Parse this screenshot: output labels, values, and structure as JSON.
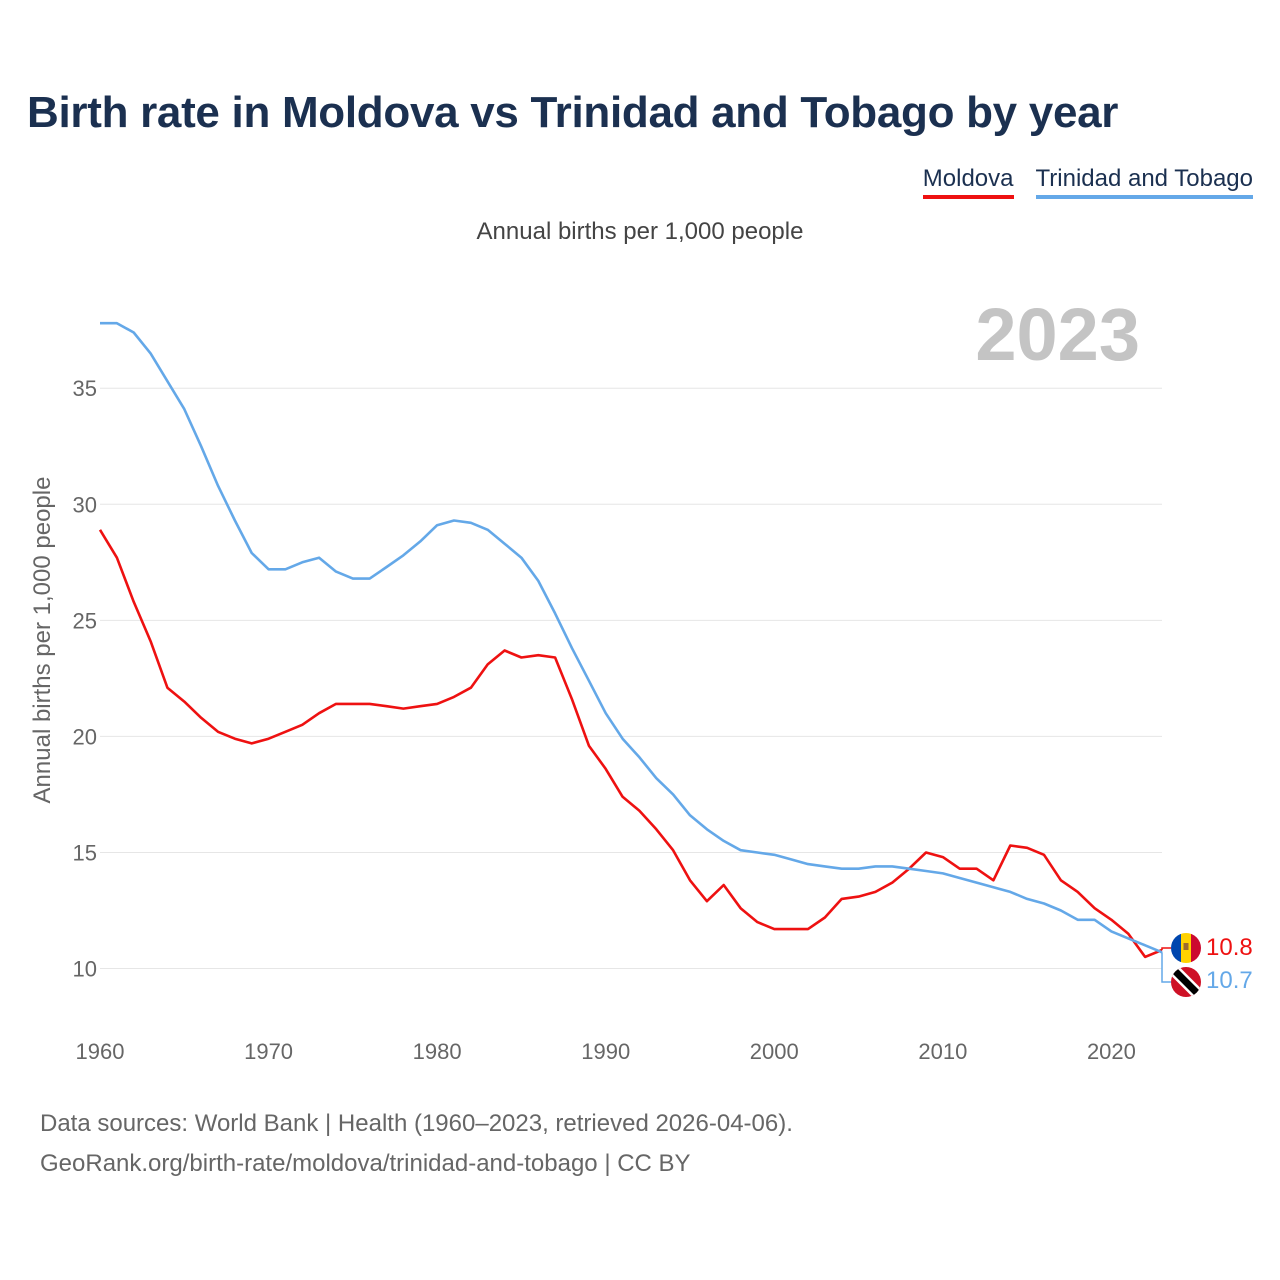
{
  "header": {
    "title": "Birth rate in Moldova vs Trinidad and Tobago by year",
    "subtitle": "Annual births per 1,000 people"
  },
  "legend": {
    "moldova": "Moldova",
    "trinidad": "Trinidad and Tobago"
  },
  "footer": {
    "line1": "Data sources: World Bank | Health (1960–2023, retrieved 2026-04-06).",
    "line2": "GeoRank.org/birth-rate/moldova/trinidad-and-tobago | CC BY"
  },
  "chart_data": {
    "type": "line",
    "title": "Birth rate in Moldova vs Trinidad and Tobago by year",
    "subtitle": "Annual births per 1,000 people",
    "xlabel": "",
    "ylabel": "Annual births per 1,000 people",
    "year_label": "2023",
    "xlim": [
      1960,
      2023
    ],
    "ylim": [
      8.3,
      38.8
    ],
    "x_ticks": [
      1960,
      1970,
      1980,
      1990,
      2000,
      2010,
      2020
    ],
    "y_ticks": [
      10,
      15,
      20,
      25,
      30,
      35
    ],
    "grid": true,
    "legend_position": "top-right",
    "x": [
      1960,
      1961,
      1962,
      1963,
      1964,
      1965,
      1966,
      1967,
      1968,
      1969,
      1970,
      1971,
      1972,
      1973,
      1974,
      1975,
      1976,
      1977,
      1978,
      1979,
      1980,
      1981,
      1982,
      1983,
      1984,
      1985,
      1986,
      1987,
      1988,
      1989,
      1990,
      1991,
      1992,
      1993,
      1994,
      1995,
      1996,
      1997,
      1998,
      1999,
      2000,
      2001,
      2002,
      2003,
      2004,
      2005,
      2006,
      2007,
      2008,
      2009,
      2010,
      2011,
      2012,
      2013,
      2014,
      2015,
      2016,
      2017,
      2018,
      2019,
      2020,
      2021,
      2022,
      2023
    ],
    "series": [
      {
        "name": "Moldova",
        "color": "#ee1111",
        "end_label": "10.8",
        "values": [
          28.9,
          27.7,
          25.8,
          24.1,
          22.1,
          21.5,
          20.8,
          20.2,
          19.9,
          19.7,
          19.9,
          20.2,
          20.5,
          21.0,
          21.4,
          21.4,
          21.4,
          21.3,
          21.2,
          21.3,
          21.4,
          21.7,
          22.1,
          23.1,
          23.7,
          23.4,
          23.5,
          23.4,
          21.6,
          19.6,
          18.6,
          17.4,
          16.8,
          16.0,
          15.1,
          13.8,
          12.9,
          13.6,
          12.6,
          12.0,
          11.7,
          11.7,
          11.7,
          12.2,
          13.0,
          13.1,
          13.3,
          13.7,
          14.3,
          15.0,
          14.8,
          14.3,
          14.3,
          13.8,
          15.3,
          15.2,
          14.9,
          13.8,
          13.3,
          12.6,
          12.1,
          11.5,
          10.5,
          10.8
        ]
      },
      {
        "name": "Trinidad and Tobago",
        "color": "#64a8e8",
        "end_label": "10.7",
        "values": [
          37.8,
          37.8,
          37.4,
          36.5,
          35.3,
          34.1,
          32.5,
          30.8,
          29.3,
          27.9,
          27.2,
          27.2,
          27.5,
          27.7,
          27.1,
          26.8,
          26.8,
          27.3,
          27.8,
          28.4,
          29.1,
          29.3,
          29.2,
          28.9,
          28.3,
          27.7,
          26.7,
          25.3,
          23.8,
          22.4,
          21.0,
          19.9,
          19.1,
          18.2,
          17.5,
          16.6,
          16.0,
          15.5,
          15.1,
          15.0,
          14.9,
          14.7,
          14.5,
          14.4,
          14.3,
          14.3,
          14.4,
          14.4,
          14.3,
          14.2,
          14.1,
          13.9,
          13.7,
          13.5,
          13.3,
          13.0,
          12.8,
          12.5,
          12.1,
          12.1,
          11.6,
          11.3,
          11.0,
          10.7
        ]
      }
    ]
  }
}
